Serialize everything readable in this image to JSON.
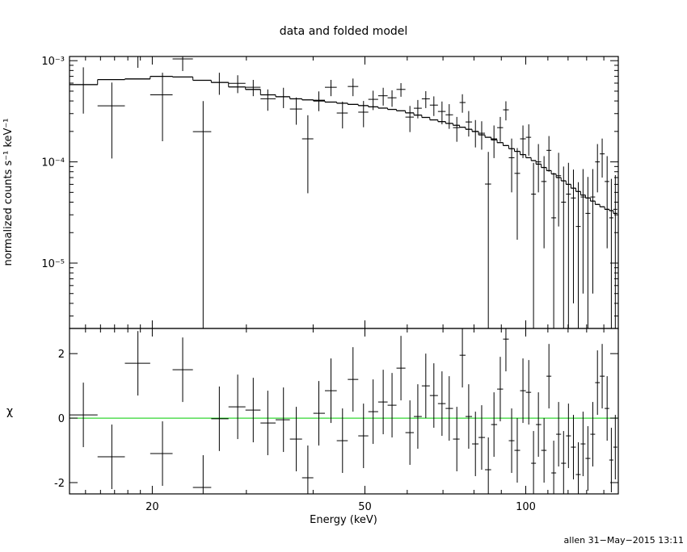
{
  "chart_data": [
    {
      "type": "errorbar",
      "title": "data and folded model",
      "ylabel": "normalized counts s⁻¹ keV⁻¹",
      "log_x": true,
      "log_y": true,
      "xlim": [
        14,
        149
      ],
      "ylim": [
        2.26e-06,
        0.0011
      ],
      "yticks": [
        {
          "value": 0.001,
          "label": "10⁻³"
        },
        {
          "value": 0.0001,
          "label": "10⁻⁴"
        },
        {
          "value": 1e-05,
          "label": "10⁻⁵"
        }
      ],
      "minor_yticks": [
        3e-06,
        4e-06,
        5e-06,
        6e-06,
        7e-06,
        8e-06,
        9e-06,
        2e-05,
        3e-05,
        4e-05,
        5e-05,
        6e-05,
        7e-05,
        8e-05,
        9e-05,
        0.0002,
        0.0003,
        0.0004,
        0.0005,
        0.0006,
        0.0007,
        0.0008,
        0.0009
      ],
      "color": "#000000",
      "x": [
        14.86,
        16.8,
        18.8,
        20.9,
        22.8,
        24.9,
        26.7,
        28.9,
        30.9,
        32.9,
        35.2,
        37.2,
        39.1,
        41.0,
        43.2,
        45.4,
        47.5,
        49.7,
        51.8,
        54.1,
        56.2,
        58.4,
        60.7,
        62.8,
        65.0,
        67.3,
        69.7,
        71.9,
        74.3,
        76.1,
        78.2,
        80.5,
        82.7,
        85.1,
        87.2,
        89.6,
        91.8,
        94.1,
        96.4,
        98.8,
        101.3,
        103.4,
        105.6,
        108.2,
        110.5,
        112.8,
        115.2,
        117.7,
        120.2,
        122.8,
        125.4,
        128.0,
        130.7,
        133.5,
        136.2,
        139.0,
        142.0,
        144.6,
        147.1
      ],
      "values": [
        0.00058,
        0.000358,
        0.0011,
        0.00046,
        0.00104,
        0.000199,
        0.00061,
        0.000598,
        0.000546,
        0.00042,
        0.00044,
        0.000333,
        0.000169,
        0.000407,
        0.000546,
        0.000304,
        0.000556,
        0.00031,
        0.000415,
        0.00045,
        0.00043,
        0.00052,
        0.000277,
        0.000339,
        0.00042,
        0.000364,
        0.000315,
        0.000292,
        0.000218,
        0.000386,
        0.000248,
        0.000199,
        0.000192,
        6.04e-05,
        0.000169,
        0.000218,
        0.000327,
        0.00011,
        7.7e-05,
        0.000169,
        0.000175,
        4.8e-05,
        0.0001,
        6.4e-05,
        0.00013,
        2.8e-05,
        7.3e-05,
        4e-05,
        4.8e-05,
        4.4e-05,
        2.3e-05,
        4.5e-05,
        3.1e-05,
        4.5e-05,
        0.0001,
        0.00012,
        6.4e-05,
        2.8e-05,
        3.4e-05
      ],
      "yerr": [
        0.00028,
        0.00025,
        0.00025,
        0.0003,
        0.00025,
        0.0002,
        0.00015,
        0.00012,
        0.0001,
        0.0001,
        0.0001,
        0.0001,
        0.00012,
        9e-05,
        0.0001,
        9e-05,
        0.00011,
        9e-05,
        9e-05,
        9e-05,
        8e-05,
        8e-05,
        8e-05,
        7e-05,
        8e-05,
        8e-05,
        8e-05,
        8e-05,
        6e-05,
        8e-05,
        7e-05,
        6e-05,
        6e-05,
        6.5e-05,
        6e-05,
        6e-05,
        7e-05,
        6e-05,
        6e-05,
        6e-05,
        6e-05,
        5e-05,
        5e-05,
        5e-05,
        5e-05,
        5e-05,
        5e-05,
        5e-05,
        5e-05,
        4e-05,
        4e-05,
        4e-05,
        4e-05,
        4e-05,
        5e-05,
        5e-05,
        5e-05,
        4e-05,
        4e-05
      ],
      "model": [
        0.00058,
        0.00065,
        0.00066,
        0.0007,
        0.00069,
        0.00064,
        0.00061,
        0.00055,
        0.00052,
        0.00046,
        0.00044,
        0.00042,
        0.00041,
        0.0004,
        0.00039,
        0.00038,
        0.00037,
        0.00036,
        0.00035,
        0.00034,
        0.00033,
        0.00032,
        0.000305,
        0.00029,
        0.000275,
        0.00026,
        0.00025,
        0.00024,
        0.00023,
        0.00022,
        0.00021,
        0.0002,
        0.000185,
        0.000175,
        0.000165,
        0.000155,
        0.000145,
        0.000135,
        0.000127,
        0.000118,
        0.00011,
        0.000103,
        9.5e-05,
        8.8e-05,
        8.2e-05,
        7.6e-05,
        7e-05,
        6.5e-05,
        6e-05,
        5.5e-05,
        5.1e-05,
        4.7e-05,
        4.4e-05,
        4.1e-05,
        3.8e-05,
        3.6e-05,
        3.4e-05,
        3.3e-05,
        3.1e-05
      ]
    },
    {
      "type": "residual",
      "xlabel": "Energy (keV)",
      "ylabel": "χ",
      "log_x": true,
      "xlim": [
        14,
        149
      ],
      "ylim": [
        -2.35,
        2.78
      ],
      "xticks": [
        20,
        50,
        100
      ],
      "minor_xticks": [
        15,
        16,
        17,
        18,
        19,
        30,
        40,
        60,
        70,
        80,
        90,
        110,
        120,
        130,
        140
      ],
      "yticks": [
        -2,
        0,
        2
      ],
      "color": "#000000",
      "reference_line": 0,
      "reference_color": "#00cc00",
      "x": [
        14.86,
        16.8,
        18.8,
        20.9,
        22.8,
        24.9,
        26.7,
        28.9,
        30.9,
        32.9,
        35.2,
        37.2,
        39.1,
        41.0,
        43.2,
        45.4,
        47.5,
        49.7,
        51.8,
        54.1,
        56.2,
        58.4,
        60.7,
        62.8,
        65.0,
        67.3,
        69.7,
        71.9,
        74.3,
        76.1,
        78.2,
        80.5,
        82.7,
        85.1,
        87.2,
        89.6,
        91.8,
        94.1,
        96.4,
        98.8,
        101.3,
        103.4,
        105.6,
        108.2,
        110.5,
        112.8,
        115.2,
        117.7,
        120.2,
        122.8,
        125.4,
        128.0,
        130.7,
        133.5,
        136.2,
        139.0,
        142.0,
        144.6,
        147.1
      ],
      "values": [
        0.1,
        -1.2,
        1.7,
        -1.1,
        1.5,
        -2.15,
        -0.02,
        0.35,
        0.25,
        -0.15,
        -0.05,
        -0.65,
        -1.85,
        0.15,
        0.85,
        -0.7,
        1.2,
        -0.55,
        0.2,
        0.5,
        0.4,
        1.55,
        -0.45,
        0.05,
        1.0,
        0.7,
        0.45,
        0.3,
        -0.65,
        1.95,
        0.05,
        -0.8,
        -0.6,
        -1.6,
        -0.2,
        0.9,
        2.45,
        -0.7,
        -1.0,
        0.85,
        0.8,
        -1.4,
        -0.2,
        -1.0,
        1.3,
        -1.7,
        -0.5,
        -1.4,
        -0.55,
        -0.9,
        -1.75,
        -0.8,
        -1.25,
        -0.5,
        1.1,
        1.3,
        0.3,
        -1.3,
        -0.9
      ],
      "yerr": 1
    }
  ],
  "footer": "allen 31−May−2015 13:11"
}
